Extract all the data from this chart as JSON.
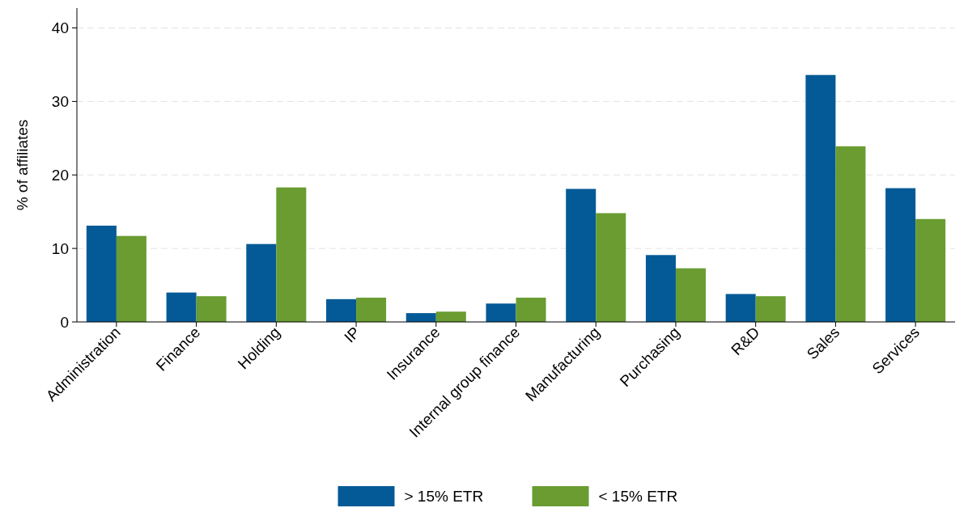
{
  "chart_data": {
    "type": "bar",
    "ylabel": "% of affiliates",
    "categories": [
      "Administration",
      "Finance",
      "Holding",
      "IP",
      "Insurance",
      "Internal group finance",
      "Manufacturing",
      "Purchasing",
      "R&D",
      "Sales",
      "Services"
    ],
    "series": [
      {
        "name": "> 15% ETR",
        "color": "#045a96",
        "values": [
          13.1,
          4.0,
          10.6,
          3.1,
          1.2,
          2.5,
          18.1,
          9.1,
          3.8,
          33.6,
          18.2
        ]
      },
      {
        "name": "< 15% ETR",
        "color": "#6a9c31",
        "values": [
          11.7,
          3.5,
          18.3,
          3.3,
          1.4,
          3.3,
          14.8,
          7.3,
          3.5,
          23.9,
          14.0
        ]
      }
    ],
    "ylim": [
      0,
      42.7
    ],
    "yticks": [
      0,
      10,
      20,
      30,
      40
    ],
    "grid": "y",
    "legend": "bottom"
  }
}
